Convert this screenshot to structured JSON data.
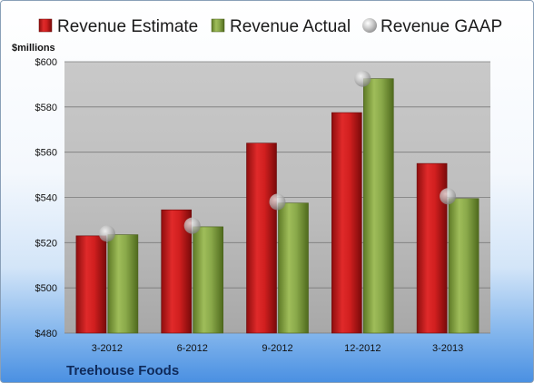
{
  "chart_data": {
    "type": "bar",
    "ylabel": "$millions",
    "company": "Treehouse Foods",
    "categories": [
      "3-2012",
      "6-2012",
      "9-2012",
      "12-2012",
      "3-2013"
    ],
    "ylim": [
      480,
      600
    ],
    "yticks": [
      480,
      500,
      520,
      540,
      560,
      580,
      600
    ],
    "ytick_labels": [
      "$480",
      "$500",
      "$520",
      "$540",
      "$560",
      "$580",
      "$600"
    ],
    "grid": true,
    "legend_position": "top",
    "series": [
      {
        "name": "Revenue Estimate",
        "kind": "bar",
        "color": "#cc1f1f",
        "values": [
          523,
          534.5,
          564,
          577.5,
          555
        ]
      },
      {
        "name": "Revenue Actual",
        "kind": "bar",
        "color": "#8cab4a",
        "values": [
          523.5,
          527,
          537.5,
          592.5,
          539.5
        ]
      },
      {
        "name": "Revenue GAAP",
        "kind": "marker",
        "color": "#b8b8b8",
        "values": [
          524,
          527.5,
          538,
          592.5,
          540.5
        ]
      }
    ]
  }
}
